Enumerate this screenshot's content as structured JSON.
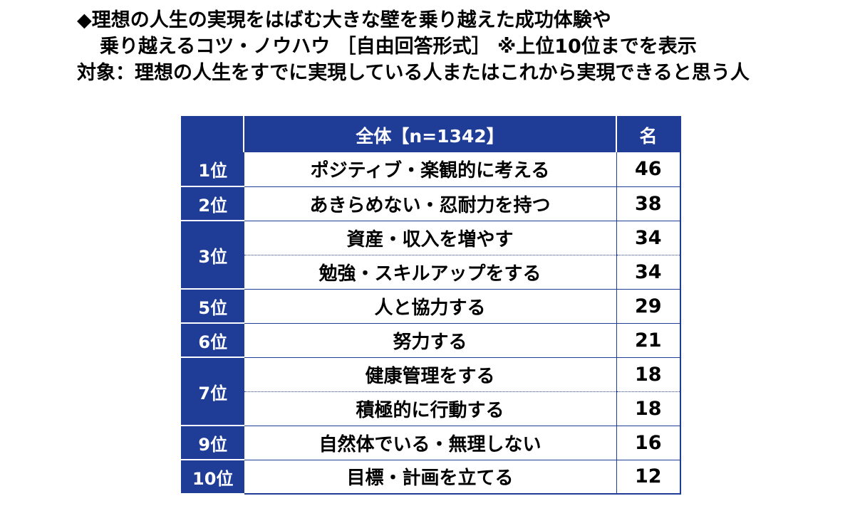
{
  "header": {
    "line1": "◆理想の人生の実現をはばむ大きな壁を乗り越えた成功体験や",
    "line2": "乗り越えるコツ・ノウハウ ［自由回答形式］ ※上位10位までを表示",
    "line3": "対象：理想の人生をすでに実現している人またはこれから実現できると思う人"
  },
  "table": {
    "col_rank_header": "",
    "col_answer_header": "全体【n=1342】",
    "col_count_header": "名"
  },
  "colors": {
    "header_bg": "#1f3c96",
    "header_text": "#ffffff",
    "border": "#1f3c96"
  },
  "chart_data": {
    "type": "table",
    "columns": [
      "",
      "全体【n=1342】",
      "名"
    ],
    "rows": [
      {
        "rank": "1位",
        "answer": "ポジティブ・楽観的に考える",
        "count": 46
      },
      {
        "rank": "2位",
        "answer": "あきらめない・忍耐力を持つ",
        "count": 38
      },
      {
        "rank": "3位",
        "answer": "資産・収入を増やす",
        "count": 34
      },
      {
        "rank": "3位",
        "answer": "勉強・スキルアップをする",
        "count": 34
      },
      {
        "rank": "5位",
        "answer": "人と協力する",
        "count": 29
      },
      {
        "rank": "6位",
        "answer": "努力する",
        "count": 21
      },
      {
        "rank": "7位",
        "answer": "健康管理をする",
        "count": 18
      },
      {
        "rank": "7位",
        "answer": "積極的に行動する",
        "count": 18
      },
      {
        "rank": "9位",
        "answer": "自然体でいる・無理しない",
        "count": 16
      },
      {
        "rank": "10位",
        "answer": "目標・計画を立てる",
        "count": 12
      }
    ]
  }
}
